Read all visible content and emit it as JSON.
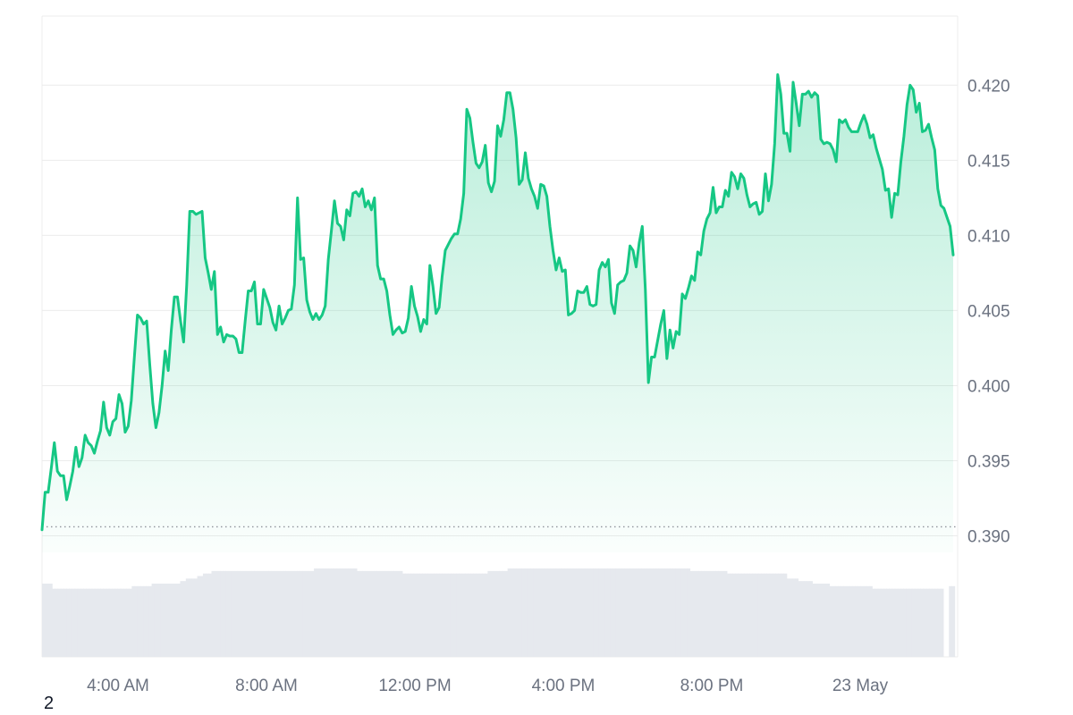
{
  "chart_data": {
    "type": "area",
    "y_axis": {
      "position": "right",
      "ticks": [
        "0.390",
        "0.395",
        "0.400",
        "0.405",
        "0.410",
        "0.415",
        "0.420"
      ],
      "range": [
        0.3889,
        0.4246
      ]
    },
    "x_axis": {
      "ticks": [
        "4:00 AM",
        "8:00 AM",
        "12:00 PM",
        "4:00 PM",
        "8:00 PM",
        "23 May"
      ]
    },
    "grid": true,
    "baseline": 0.3906,
    "colors": {
      "line": "#16c784",
      "area": "#16c784",
      "volume": "#e6e9ee",
      "grid": "#ececec",
      "baseline": "#8f949b"
    },
    "series": [
      {
        "values": [
          0.3904,
          0.3929,
          0.3929,
          0.3945,
          0.3962,
          0.3943,
          0.394,
          0.394,
          0.3924,
          0.3933,
          0.3943,
          0.3959,
          0.3946,
          0.3952,
          0.3967,
          0.3962,
          0.396,
          0.3955,
          0.3963,
          0.397,
          0.3989,
          0.3972,
          0.3967,
          0.3976,
          0.3978,
          0.3994,
          0.3988,
          0.3969,
          0.3973,
          0.399,
          0.4019,
          0.4047,
          0.4045,
          0.4041,
          0.4043,
          0.4014,
          0.3988,
          0.3972,
          0.3982,
          0.4,
          0.4023,
          0.401,
          0.4037,
          0.4059,
          0.4059,
          0.4043,
          0.4029,
          0.4067,
          0.4116,
          0.4116,
          0.4114,
          0.4115,
          0.4116,
          0.4085,
          0.4075,
          0.4064,
          0.4076,
          0.4034,
          0.4039,
          0.4029,
          0.4034,
          0.4033,
          0.4033,
          0.4031,
          0.4022,
          0.4022,
          0.4043,
          0.4063,
          0.4063,
          0.4069,
          0.4041,
          0.4041,
          0.4064,
          0.4058,
          0.4052,
          0.4042,
          0.4037,
          0.4053,
          0.4041,
          0.4045,
          0.405,
          0.4051,
          0.4067,
          0.4125,
          0.4084,
          0.4085,
          0.4057,
          0.4049,
          0.4044,
          0.4048,
          0.4044,
          0.4047,
          0.4053,
          0.4084,
          0.4103,
          0.4123,
          0.4108,
          0.4106,
          0.4097,
          0.4117,
          0.4113,
          0.4128,
          0.4129,
          0.4126,
          0.4131,
          0.4119,
          0.4123,
          0.4117,
          0.4125,
          0.408,
          0.4071,
          0.4071,
          0.4063,
          0.4047,
          0.4034,
          0.4037,
          0.4039,
          0.4035,
          0.4036,
          0.4045,
          0.4066,
          0.4053,
          0.4046,
          0.4036,
          0.4044,
          0.4041,
          0.408,
          0.4066,
          0.4048,
          0.4052,
          0.4073,
          0.409,
          0.4094,
          0.4098,
          0.4101,
          0.4101,
          0.4111,
          0.4128,
          0.4184,
          0.4178,
          0.4162,
          0.4148,
          0.4145,
          0.4149,
          0.416,
          0.4135,
          0.4129,
          0.4136,
          0.4173,
          0.4166,
          0.4177,
          0.4195,
          0.4195,
          0.4184,
          0.4165,
          0.4134,
          0.4137,
          0.4155,
          0.4138,
          0.4131,
          0.4126,
          0.4118,
          0.4134,
          0.4133,
          0.4126,
          0.4106,
          0.409,
          0.4077,
          0.4085,
          0.4076,
          0.4077,
          0.4047,
          0.4048,
          0.405,
          0.4063,
          0.4062,
          0.4062,
          0.4066,
          0.4054,
          0.4053,
          0.4054,
          0.4077,
          0.4082,
          0.4079,
          0.4084,
          0.4055,
          0.4048,
          0.4067,
          0.4069,
          0.407,
          0.4075,
          0.4093,
          0.409,
          0.4079,
          0.4095,
          0.4106,
          0.4064,
          0.4002,
          0.4019,
          0.4019,
          0.403,
          0.4041,
          0.405,
          0.4018,
          0.4037,
          0.4025,
          0.4036,
          0.4034,
          0.4061,
          0.4058,
          0.4065,
          0.4073,
          0.407,
          0.4089,
          0.4087,
          0.4103,
          0.4111,
          0.4115,
          0.4132,
          0.4115,
          0.4119,
          0.4119,
          0.413,
          0.4126,
          0.4142,
          0.4139,
          0.4131,
          0.4141,
          0.4138,
          0.4127,
          0.4119,
          0.4121,
          0.4122,
          0.4114,
          0.4116,
          0.4141,
          0.4123,
          0.4134,
          0.4161,
          0.4207,
          0.4194,
          0.4168,
          0.4168,
          0.4156,
          0.4202,
          0.4188,
          0.4173,
          0.4194,
          0.4194,
          0.4196,
          0.4192,
          0.4195,
          0.4193,
          0.4164,
          0.4161,
          0.4162,
          0.4161,
          0.4157,
          0.4149,
          0.4177,
          0.4175,
          0.4177,
          0.4172,
          0.4169,
          0.4169,
          0.4169,
          0.4175,
          0.418,
          0.4174,
          0.4165,
          0.4167,
          0.4158,
          0.4151,
          0.4144,
          0.413,
          0.4131,
          0.4112,
          0.4128,
          0.4127,
          0.4149,
          0.4166,
          0.4187,
          0.42,
          0.4197,
          0.4182,
          0.4188,
          0.4169,
          0.417,
          0.4174,
          0.4165,
          0.4157,
          0.4131,
          0.412,
          0.4118,
          0.4112,
          0.4106,
          0.4087
        ]
      }
    ],
    "volume": [
      29,
      29,
      29,
      29,
      27,
      27,
      27,
      27,
      27,
      27,
      27,
      27,
      27,
      27,
      27,
      27,
      27,
      27,
      27,
      27,
      27,
      27,
      27,
      27,
      27,
      27,
      27,
      27,
      27,
      27,
      27,
      27,
      28,
      28,
      28,
      28,
      28,
      28,
      28,
      29,
      29,
      29,
      29,
      29,
      29,
      29,
      29,
      29,
      29,
      30,
      30,
      31,
      31,
      31,
      31,
      32,
      32,
      33,
      33,
      33,
      34,
      34,
      34,
      34,
      34,
      34,
      34,
      34,
      34,
      34,
      34,
      34,
      34,
      34,
      34,
      34,
      34,
      34,
      34,
      34,
      34,
      34,
      34,
      34,
      34,
      34,
      34,
      34,
      34,
      34,
      34,
      34,
      34,
      34,
      34,
      34,
      35,
      35,
      35,
      35,
      35,
      35,
      35,
      35,
      35,
      35,
      35,
      35,
      35,
      35,
      35,
      34,
      34,
      34,
      34,
      34,
      34,
      34,
      34,
      34,
      34,
      34,
      34,
      34,
      34,
      34,
      34,
      33,
      33,
      33,
      33,
      33,
      33,
      33,
      33,
      33,
      33,
      33,
      33,
      33,
      33,
      33,
      33,
      33,
      33,
      33,
      33,
      33,
      33,
      33,
      33,
      33,
      33,
      33,
      33,
      33,
      33,
      34,
      34,
      34,
      34,
      34,
      34,
      34,
      35,
      35,
      35,
      35,
      35,
      35,
      35,
      35,
      35,
      35,
      35,
      35,
      35,
      35,
      35,
      35,
      35,
      35,
      35,
      35,
      35,
      35,
      35,
      35,
      35,
      35,
      35,
      35,
      35,
      35,
      35,
      35,
      35,
      35,
      35,
      35,
      35,
      35,
      35,
      35,
      35,
      35,
      35,
      35,
      35,
      35,
      35,
      35,
      35,
      35,
      35,
      35,
      35,
      35,
      35,
      35,
      35,
      35,
      35,
      35,
      35,
      35,
      35,
      35,
      34,
      34,
      34,
      34,
      34,
      34,
      34,
      34,
      34,
      34,
      34,
      34,
      34,
      33,
      33,
      33,
      33,
      33,
      33,
      33,
      33,
      33,
      33,
      33,
      33,
      33,
      33,
      33,
      33,
      33,
      33,
      33,
      33,
      33,
      31,
      31,
      31,
      31,
      30,
      30,
      30,
      30,
      30,
      29,
      29,
      29,
      29,
      29,
      29,
      28,
      28,
      28,
      28,
      28,
      28,
      28,
      28,
      28,
      28,
      28,
      28,
      28,
      28,
      28,
      27,
      27,
      27,
      27,
      27,
      27,
      27,
      27,
      27,
      27,
      27,
      27,
      27,
      27,
      27,
      27,
      27,
      27,
      27,
      27,
      27,
      27,
      27,
      27,
      27,
      0,
      0,
      28,
      28
    ]
  },
  "footnote": "2"
}
